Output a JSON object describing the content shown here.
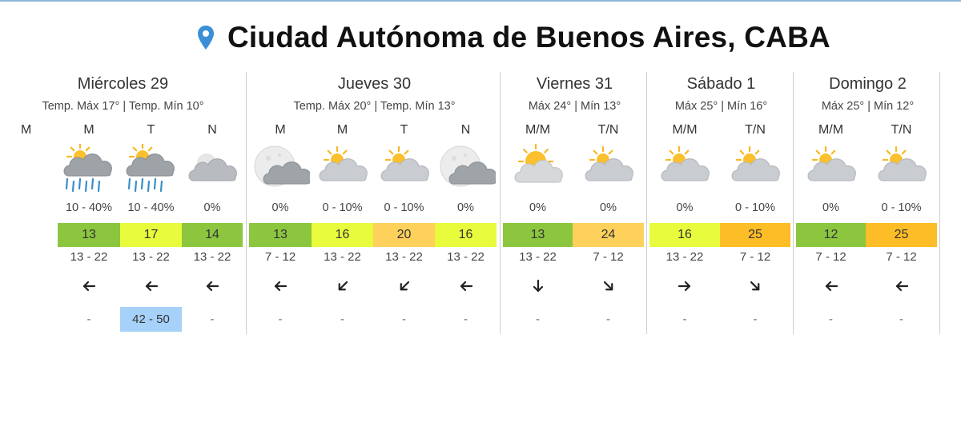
{
  "location": {
    "title": "Ciudad Autónoma de Buenos Aires, CABA",
    "icon": "location-pin-icon"
  },
  "colors": {
    "green": "#8cc63f",
    "lime": "#e8fb3c",
    "amber": "#fdd15b",
    "orange": "#fdbd26",
    "gust_highlight": "#a6d1f8"
  },
  "days": [
    {
      "name": "Miércoles 29",
      "temps": "Temp. Máx 17° | Temp. Mín 10°",
      "periods": [
        {
          "label": "M",
          "icon": "",
          "prob": "",
          "temp": "",
          "temp_color": "",
          "wind_speed": "",
          "wind_direction_icon": "",
          "gust": ""
        },
        {
          "label": "M",
          "icon": "sun-cloud-rain-icon",
          "prob": "10 - 40%",
          "temp": "13",
          "temp_color": "green",
          "wind_speed": "13 - 22",
          "wind_direction_icon": "arrow-left-icon",
          "gust": "-"
        },
        {
          "label": "T",
          "icon": "sun-cloud-rain-icon",
          "prob": "10 - 40%",
          "temp": "17",
          "temp_color": "lime",
          "wind_speed": "13 - 22",
          "wind_direction_icon": "arrow-left-icon",
          "gust": "42 - 50"
        },
        {
          "label": "N",
          "icon": "moon-cloud-icon",
          "prob": "0%",
          "temp": "14",
          "temp_color": "green",
          "wind_speed": "13 - 22",
          "wind_direction_icon": "arrow-left-icon",
          "gust": "-"
        }
      ]
    },
    {
      "name": "Jueves 30",
      "temps": "Temp. Máx 20° | Temp. Mín 13°",
      "periods": [
        {
          "label": "M",
          "icon": "full-moon-cloud-icon",
          "prob": "0%",
          "temp": "13",
          "temp_color": "green",
          "wind_speed": "7 - 12",
          "wind_direction_icon": "arrow-left-icon",
          "gust": "-"
        },
        {
          "label": "M",
          "icon": "sun-cloud-icon",
          "prob": "0 - 10%",
          "temp": "16",
          "temp_color": "lime",
          "wind_speed": "13 - 22",
          "wind_direction_icon": "arrow-down-left-icon",
          "gust": "-"
        },
        {
          "label": "T",
          "icon": "sun-cloud-icon",
          "prob": "0 - 10%",
          "temp": "20",
          "temp_color": "amber",
          "wind_speed": "13 - 22",
          "wind_direction_icon": "arrow-down-left-icon",
          "gust": "-"
        },
        {
          "label": "N",
          "icon": "full-moon-cloud-icon",
          "prob": "0%",
          "temp": "16",
          "temp_color": "lime",
          "wind_speed": "13 - 22",
          "wind_direction_icon": "arrow-left-icon",
          "gust": "-"
        }
      ]
    },
    {
      "name": "Viernes 31",
      "temps": "Máx 24° | Mín 13°",
      "periods": [
        {
          "label": "M/M",
          "icon": "sun-behind-cloud-icon",
          "prob": "0%",
          "temp": "13",
          "temp_color": "green",
          "wind_speed": "13 - 22",
          "wind_direction_icon": "arrow-down-icon",
          "gust": "-"
        },
        {
          "label": "T/N",
          "icon": "sun-cloud-icon",
          "prob": "0%",
          "temp": "24",
          "temp_color": "amber",
          "wind_speed": "7 - 12",
          "wind_direction_icon": "arrow-down-right-icon",
          "gust": "-"
        }
      ]
    },
    {
      "name": "Sábado 1",
      "temps": "Máx 25° | Mín 16°",
      "periods": [
        {
          "label": "M/M",
          "icon": "sun-cloud-icon",
          "prob": "0%",
          "temp": "16",
          "temp_color": "lime",
          "wind_speed": "13 - 22",
          "wind_direction_icon": "arrow-right-icon",
          "gust": "-"
        },
        {
          "label": "T/N",
          "icon": "sun-cloud-icon",
          "prob": "0 - 10%",
          "temp": "25",
          "temp_color": "orange",
          "wind_speed": "7 - 12",
          "wind_direction_icon": "arrow-down-right-icon",
          "gust": "-"
        }
      ]
    },
    {
      "name": "Domingo 2",
      "temps": "Máx 25° | Mín 12°",
      "periods": [
        {
          "label": "M/M",
          "icon": "sun-cloud-icon",
          "prob": "0%",
          "temp": "12",
          "temp_color": "green",
          "wind_speed": "7 - 12",
          "wind_direction_icon": "arrow-left-icon",
          "gust": "-"
        },
        {
          "label": "T/N",
          "icon": "sun-cloud-icon",
          "prob": "0 - 10%",
          "temp": "25",
          "temp_color": "orange",
          "wind_speed": "7 - 12",
          "wind_direction_icon": "arrow-left-icon",
          "gust": "-"
        }
      ]
    }
  ]
}
